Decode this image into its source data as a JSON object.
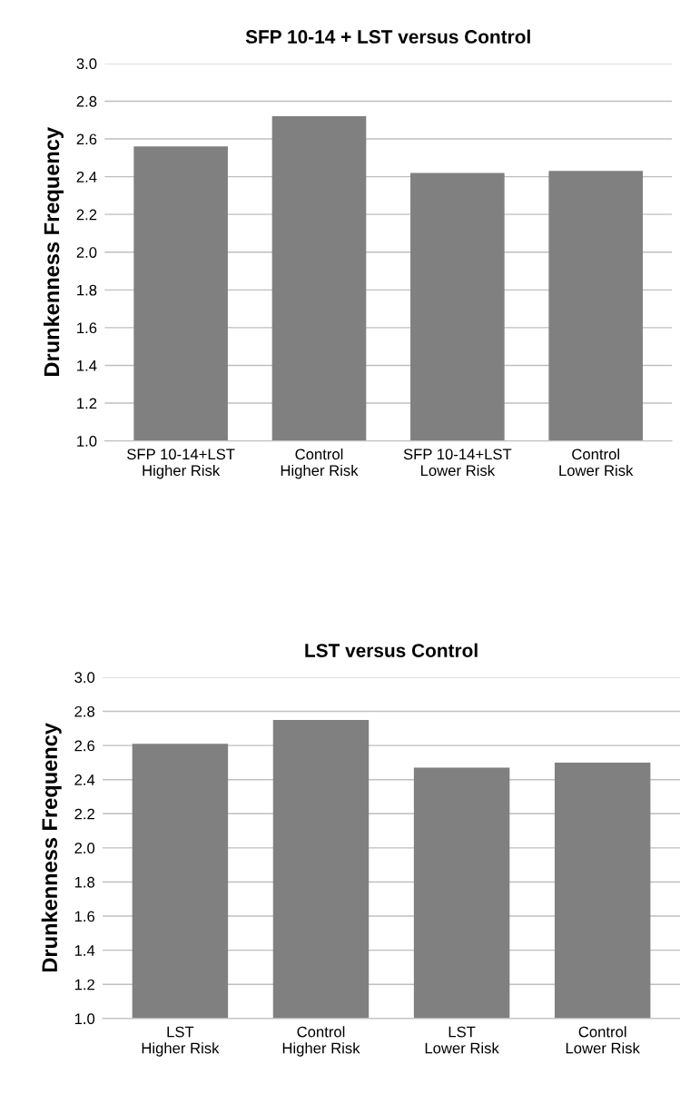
{
  "chart_data": [
    {
      "type": "bar",
      "title": "SFP 10-14 + LST versus Control",
      "ylabel": "Drunkenness Frequency",
      "categories": [
        "SFP 10-14+LST\nHigher Risk",
        "Control\nHigher Risk",
        "SFP 10-14+LST\nLower Risk",
        "Control\nLower Risk"
      ],
      "values": [
        2.56,
        2.72,
        2.42,
        2.43
      ],
      "color": "#808080",
      "ylim": [
        1.0,
        3.0
      ],
      "yticks": [
        {
          "value": 1.0,
          "label": "1.0"
        },
        {
          "value": 1.2,
          "label": "1.2"
        },
        {
          "value": 1.4,
          "label": "1.4"
        },
        {
          "value": 1.6,
          "label": "1.6"
        },
        {
          "value": 1.8,
          "label": "1.8"
        },
        {
          "value": 2.0,
          "label": "2.0"
        },
        {
          "value": 2.2,
          "label": "2.2"
        },
        {
          "value": 2.4,
          "label": "2.4"
        },
        {
          "value": 2.6,
          "label": "2.6"
        },
        {
          "value": 2.8,
          "label": "2.8"
        },
        {
          "value": 3.0,
          "label": "3.0"
        }
      ],
      "grid": "y"
    },
    {
      "type": "bar",
      "title": "LST versus Control",
      "ylabel": "Drunkenness Frequency",
      "categories": [
        "LST\nHigher Risk",
        "Control\nHigher Risk",
        "LST\nLower Risk",
        "Control\nLower Risk"
      ],
      "values": [
        2.61,
        2.75,
        2.47,
        2.5
      ],
      "color": "#808080",
      "ylim": [
        1.0,
        3.0
      ],
      "yticks": [
        {
          "value": 1.0,
          "label": "1.0"
        },
        {
          "value": 1.2,
          "label": "1.2"
        },
        {
          "value": 1.4,
          "label": "1.4"
        },
        {
          "value": 1.6,
          "label": "1.6"
        },
        {
          "value": 1.8,
          "label": "1.8"
        },
        {
          "value": 2.0,
          "label": "2.0"
        },
        {
          "value": 2.2,
          "label": "2.2"
        },
        {
          "value": 2.4,
          "label": "2.4"
        },
        {
          "value": 2.6,
          "label": "2.6"
        },
        {
          "value": 2.8,
          "label": "2.8"
        },
        {
          "value": 3.0,
          "label": "3.0"
        }
      ],
      "grid": "y"
    }
  ]
}
